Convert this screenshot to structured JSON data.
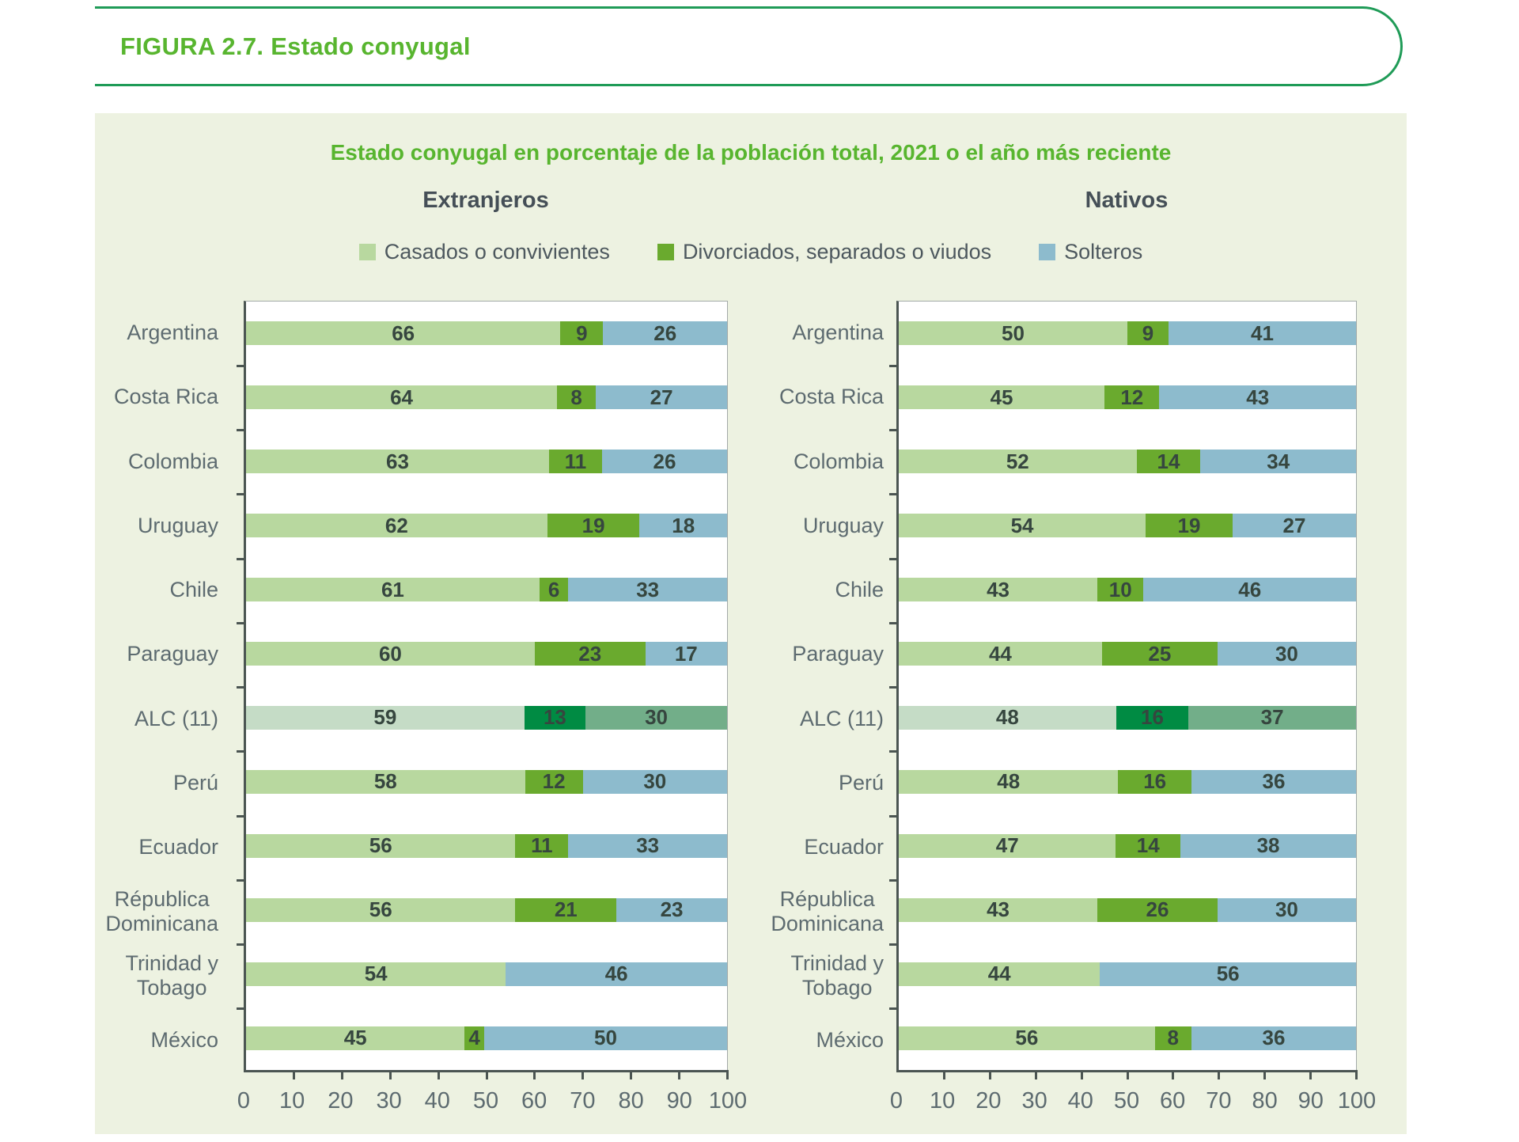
{
  "figure": {
    "title": "FIGURA 2.7. Estado conyugal",
    "subtitle": "Estado conyugal en porcentaje de la población total, 2021 o el año más reciente"
  },
  "legend": [
    {
      "label": "Casados o convivientes"
    },
    {
      "label": "Divorciados, separados o viudos"
    },
    {
      "label": "Solteros"
    }
  ],
  "colors": {
    "title_green": "#58b52f",
    "box_border_green": "#1f9b57",
    "panel_bg": "#edf2e1",
    "series": [
      "#b8d89f",
      "#6aaa2e",
      "#8dbbcd"
    ],
    "highlight_series": [
      "#c5dcc6",
      "#008b43",
      "#72ae89"
    ],
    "value_text": "#36463f",
    "label_text": "#5d6b70"
  },
  "chart_data": [
    {
      "type": "bar",
      "orientation": "horizontal",
      "stacked": true,
      "title": "Extranjeros",
      "xlim": [
        0,
        100
      ],
      "x_ticks": [
        0,
        10,
        20,
        30,
        40,
        50,
        60,
        70,
        80,
        90,
        100
      ],
      "grid": false,
      "legend_position": "top",
      "series_names": [
        "Casados o convivientes",
        "Divorciados, separados o viudos",
        "Solteros"
      ],
      "rows": [
        {
          "country": "Argentina",
          "values": [
            66,
            9,
            26
          ],
          "highlight": false
        },
        {
          "country": "Costa Rica",
          "values": [
            64,
            8,
            27
          ],
          "highlight": false
        },
        {
          "country": "Colombia",
          "values": [
            63,
            11,
            26
          ],
          "highlight": false
        },
        {
          "country": "Uruguay",
          "values": [
            62,
            19,
            18
          ],
          "highlight": false
        },
        {
          "country": "Chile",
          "values": [
            61,
            6,
            33
          ],
          "highlight": false
        },
        {
          "country": "Paraguay",
          "values": [
            60,
            23,
            17
          ],
          "highlight": false
        },
        {
          "country": "ALC (11)",
          "values": [
            59,
            13,
            30
          ],
          "highlight": true
        },
        {
          "country": "Perú",
          "values": [
            58,
            12,
            30
          ],
          "highlight": false
        },
        {
          "country": "Ecuador",
          "values": [
            56,
            11,
            33
          ],
          "highlight": false
        },
        {
          "country": "Républica\nDominicana",
          "values": [
            56,
            21,
            23
          ],
          "highlight": false
        },
        {
          "country": "Trinidad y\nTobago",
          "values": [
            54,
            0,
            46
          ],
          "highlight": false
        },
        {
          "country": "México",
          "values": [
            45,
            4,
            50
          ],
          "highlight": false
        }
      ]
    },
    {
      "type": "bar",
      "orientation": "horizontal",
      "stacked": true,
      "title": "Nativos",
      "xlim": [
        0,
        100
      ],
      "x_ticks": [
        0,
        10,
        20,
        30,
        40,
        50,
        60,
        70,
        80,
        90,
        100
      ],
      "grid": false,
      "legend_position": "top",
      "series_names": [
        "Casados o convivientes",
        "Divorciados, separados o viudos",
        "Solteros"
      ],
      "rows": [
        {
          "country": "Argentina",
          "values": [
            50,
            9,
            41
          ],
          "highlight": false
        },
        {
          "country": "Costa Rica",
          "values": [
            45,
            12,
            43
          ],
          "highlight": false
        },
        {
          "country": "Colombia",
          "values": [
            52,
            14,
            34
          ],
          "highlight": false
        },
        {
          "country": "Uruguay",
          "values": [
            54,
            19,
            27
          ],
          "highlight": false
        },
        {
          "country": "Chile",
          "values": [
            43,
            10,
            46
          ],
          "highlight": false
        },
        {
          "country": "Paraguay",
          "values": [
            44,
            25,
            30
          ],
          "highlight": false
        },
        {
          "country": "ALC (11)",
          "values": [
            48,
            16,
            37
          ],
          "highlight": true
        },
        {
          "country": "Perú",
          "values": [
            48,
            16,
            36
          ],
          "highlight": false
        },
        {
          "country": "Ecuador",
          "values": [
            47,
            14,
            38
          ],
          "highlight": false
        },
        {
          "country": "Républica\nDominicana",
          "values": [
            43,
            26,
            30
          ],
          "highlight": false
        },
        {
          "country": "Trinidad y\nTobago",
          "values": [
            44,
            0,
            56
          ],
          "highlight": false
        },
        {
          "country": "México",
          "values": [
            56,
            8,
            36
          ],
          "highlight": false
        }
      ]
    }
  ]
}
